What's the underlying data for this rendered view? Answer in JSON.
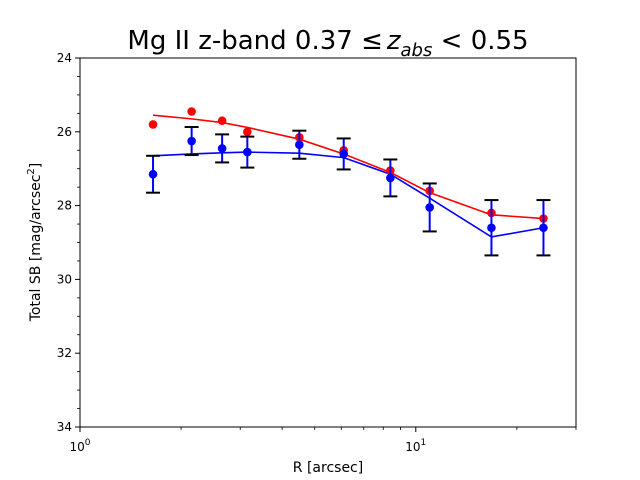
{
  "chart_data": {
    "type": "scatter",
    "title_main": "Mg II z-band 0.37 ≤",
    "title_var": "z",
    "title_sub": "abs",
    "title_end": " < 0.55",
    "xlabel": "R [arcsec]",
    "ylabel_main": "Total SB [mag/arcsec",
    "ylabel_sup": "2",
    "ylabel_end": "]",
    "xscale": "log",
    "xlim": [
      1,
      30
    ],
    "ylim": [
      34,
      24
    ],
    "x_major_ticks": [
      {
        "value": 1,
        "base": "10",
        "exp": "0"
      },
      {
        "value": 10,
        "base": "10",
        "exp": "1"
      }
    ],
    "y_ticks": [
      24,
      26,
      28,
      30,
      32,
      34
    ],
    "y_tick_labels": [
      "24",
      "26",
      "28",
      "30",
      "32",
      "34"
    ],
    "grid": false,
    "series": [
      {
        "name": "red",
        "color": "#ff0000",
        "points": [
          {
            "x": 1.65,
            "y": 25.8
          },
          {
            "x": 2.15,
            "y": 25.45
          },
          {
            "x": 2.65,
            "y": 25.7
          },
          {
            "x": 3.15,
            "y": 26.0
          },
          {
            "x": 4.5,
            "y": 26.15
          },
          {
            "x": 6.1,
            "y": 26.5
          },
          {
            "x": 8.4,
            "y": 27.05
          },
          {
            "x": 11.0,
            "y": 27.6
          },
          {
            "x": 16.8,
            "y": 28.2
          },
          {
            "x": 24.0,
            "y": 28.35
          }
        ],
        "line": [
          {
            "x": 1.65,
            "y": 25.55
          },
          {
            "x": 2.15,
            "y": 25.65
          },
          {
            "x": 2.65,
            "y": 25.75
          },
          {
            "x": 3.15,
            "y": 25.88
          },
          {
            "x": 4.5,
            "y": 26.2
          },
          {
            "x": 6.1,
            "y": 26.6
          },
          {
            "x": 8.4,
            "y": 27.1
          },
          {
            "x": 11.0,
            "y": 27.65
          },
          {
            "x": 16.8,
            "y": 28.25
          },
          {
            "x": 24.0,
            "y": 28.35
          }
        ]
      },
      {
        "name": "blue",
        "color": "#0000ff",
        "points": [
          {
            "x": 1.65,
            "y": 27.15,
            "err": 0.5
          },
          {
            "x": 2.15,
            "y": 26.25,
            "err": 0.38
          },
          {
            "x": 2.65,
            "y": 26.45,
            "err": 0.38
          },
          {
            "x": 3.15,
            "y": 26.55,
            "err": 0.42
          },
          {
            "x": 4.5,
            "y": 26.35,
            "err": 0.38
          },
          {
            "x": 6.1,
            "y": 26.6,
            "err": 0.42
          },
          {
            "x": 8.4,
            "y": 27.25,
            "err": 0.5
          },
          {
            "x": 11.0,
            "y": 28.05,
            "err": 0.65
          },
          {
            "x": 16.8,
            "y": 28.6,
            "err": 0.75
          },
          {
            "x": 24.0,
            "y": 28.6,
            "err": 0.75
          }
        ],
        "line": [
          {
            "x": 1.65,
            "y": 26.65
          },
          {
            "x": 2.15,
            "y": 26.6
          },
          {
            "x": 2.65,
            "y": 26.57
          },
          {
            "x": 3.15,
            "y": 26.55
          },
          {
            "x": 4.5,
            "y": 26.58
          },
          {
            "x": 6.1,
            "y": 26.7
          },
          {
            "x": 8.4,
            "y": 27.15
          },
          {
            "x": 11.0,
            "y": 27.8
          },
          {
            "x": 16.8,
            "y": 28.85
          },
          {
            "x": 24.0,
            "y": 28.6
          }
        ]
      }
    ]
  }
}
